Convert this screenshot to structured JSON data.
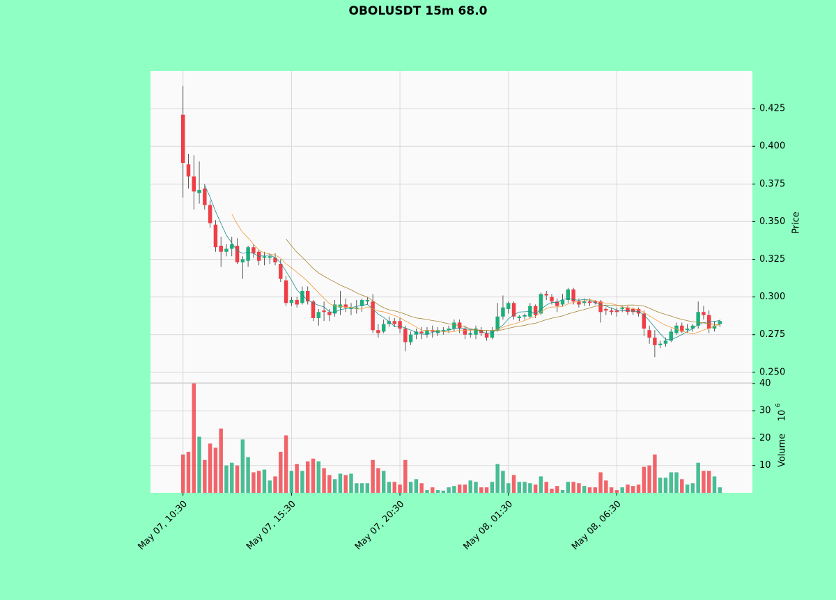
{
  "chart_data": {
    "type": "candlestick",
    "title": "OBOLUSDT 15m 68.0",
    "y_label": "Price",
    "y2_label": "Volume",
    "y2_unit_base": "10",
    "y2_unit_exponent": "6",
    "xlim": [
      -6,
      105
    ],
    "xticks": [
      {
        "value": 0,
        "label": "May 07, 10:30"
      },
      {
        "value": 20,
        "label": "May 07, 15:30"
      },
      {
        "value": 40,
        "label": "May 07, 20:30"
      },
      {
        "value": 60,
        "label": "May 08, 01:30"
      },
      {
        "value": 80,
        "label": "May 08, 06:30"
      }
    ],
    "ylim": [
      0.243,
      0.45
    ],
    "yticks": [
      {
        "value": 0.25,
        "label": "0.250"
      },
      {
        "value": 0.275,
        "label": "0.275"
      },
      {
        "value": 0.3,
        "label": "0.300"
      },
      {
        "value": 0.325,
        "label": "0.325"
      },
      {
        "value": 0.35,
        "label": "0.350"
      },
      {
        "value": 0.375,
        "label": "0.375"
      },
      {
        "value": 0.4,
        "label": "0.400"
      },
      {
        "value": 0.425,
        "label": "0.425"
      }
    ],
    "y2lim": [
      0,
      40.2
    ],
    "y2ticks": [
      10,
      20,
      30,
      40
    ],
    "grid": true,
    "up_color": "#1dae7a",
    "down_color": "#ef3e45",
    "moving_averages": [
      {
        "window": 5,
        "color": "#1f8a8a"
      },
      {
        "window": 10,
        "color": "#f59a3c"
      },
      {
        "window": 20,
        "color": "#a5822e"
      }
    ],
    "open": [
      0.421,
      0.388,
      0.38,
      0.369,
      0.372,
      0.361,
      0.348,
      0.334,
      0.33,
      0.332,
      0.334,
      0.323,
      0.324,
      0.333,
      0.33,
      0.326,
      0.326,
      0.326,
      0.322,
      0.311,
      0.296,
      0.298,
      0.296,
      0.304,
      0.297,
      0.286,
      0.291,
      0.29,
      0.289,
      0.293,
      0.295,
      0.292,
      0.292,
      0.294,
      0.297,
      0.297,
      0.278,
      0.277,
      0.282,
      0.284,
      0.284,
      0.279,
      0.27,
      0.275,
      0.277,
      0.275,
      0.278,
      0.276,
      0.277,
      0.278,
      0.279,
      0.283,
      0.279,
      0.275,
      0.275,
      0.278,
      0.276,
      0.273,
      0.278,
      0.287,
      0.292,
      0.296,
      0.286,
      0.287,
      0.287,
      0.294,
      0.289,
      0.302,
      0.3,
      0.297,
      0.295,
      0.298,
      0.305,
      0.297,
      0.296,
      0.297,
      0.297,
      0.297,
      0.292,
      0.291,
      0.291,
      0.292,
      0.293,
      0.292,
      0.292,
      0.289,
      0.278,
      0.273,
      0.268,
      0.269,
      0.271,
      0.276,
      0.281,
      0.278,
      0.279,
      0.281,
      0.29,
      0.288,
      0.279,
      0.282
    ],
    "high": [
      0.44,
      0.395,
      0.394,
      0.39,
      0.375,
      0.364,
      0.351,
      0.34,
      0.335,
      0.34,
      0.339,
      0.327,
      0.334,
      0.335,
      0.331,
      0.33,
      0.329,
      0.329,
      0.325,
      0.314,
      0.3,
      0.3,
      0.307,
      0.307,
      0.298,
      0.292,
      0.297,
      0.292,
      0.298,
      0.304,
      0.299,
      0.296,
      0.298,
      0.299,
      0.3,
      0.302,
      0.282,
      0.285,
      0.287,
      0.286,
      0.286,
      0.281,
      0.277,
      0.279,
      0.28,
      0.28,
      0.281,
      0.28,
      0.28,
      0.281,
      0.285,
      0.285,
      0.281,
      0.278,
      0.281,
      0.28,
      0.278,
      0.28,
      0.296,
      0.301,
      0.297,
      0.297,
      0.288,
      0.289,
      0.296,
      0.295,
      0.303,
      0.304,
      0.302,
      0.299,
      0.302,
      0.306,
      0.306,
      0.299,
      0.299,
      0.299,
      0.298,
      0.298,
      0.293,
      0.293,
      0.293,
      0.294,
      0.294,
      0.293,
      0.293,
      0.291,
      0.281,
      0.278,
      0.271,
      0.273,
      0.279,
      0.283,
      0.283,
      0.282,
      0.282,
      0.297,
      0.294,
      0.291,
      0.284,
      0.285
    ],
    "low": [
      0.366,
      0.372,
      0.358,
      0.362,
      0.358,
      0.346,
      0.33,
      0.32,
      0.327,
      0.327,
      0.322,
      0.312,
      0.32,
      0.326,
      0.321,
      0.321,
      0.322,
      0.321,
      0.31,
      0.294,
      0.294,
      0.293,
      0.295,
      0.295,
      0.284,
      0.281,
      0.284,
      0.284,
      0.287,
      0.288,
      0.29,
      0.288,
      0.289,
      0.29,
      0.295,
      0.276,
      0.273,
      0.276,
      0.28,
      0.28,
      0.276,
      0.264,
      0.268,
      0.272,
      0.272,
      0.273,
      0.273,
      0.274,
      0.275,
      0.276,
      0.277,
      0.276,
      0.272,
      0.273,
      0.272,
      0.274,
      0.271,
      0.272,
      0.277,
      0.285,
      0.289,
      0.285,
      0.284,
      0.285,
      0.286,
      0.286,
      0.288,
      0.298,
      0.295,
      0.29,
      0.294,
      0.296,
      0.295,
      0.293,
      0.294,
      0.294,
      0.295,
      0.283,
      0.288,
      0.288,
      0.287,
      0.29,
      0.288,
      0.288,
      0.287,
      0.274,
      0.269,
      0.26,
      0.266,
      0.267,
      0.27,
      0.275,
      0.276,
      0.276,
      0.277,
      0.279,
      0.285,
      0.276,
      0.277,
      0.28
    ],
    "close": [
      0.389,
      0.38,
      0.37,
      0.371,
      0.361,
      0.349,
      0.333,
      0.33,
      0.332,
      0.335,
      0.323,
      0.325,
      0.333,
      0.329,
      0.324,
      0.327,
      0.327,
      0.323,
      0.312,
      0.296,
      0.298,
      0.295,
      0.304,
      0.297,
      0.286,
      0.29,
      0.29,
      0.288,
      0.295,
      0.295,
      0.293,
      0.293,
      0.293,
      0.298,
      0.298,
      0.278,
      0.276,
      0.282,
      0.284,
      0.282,
      0.279,
      0.27,
      0.275,
      0.277,
      0.276,
      0.278,
      0.277,
      0.278,
      0.278,
      0.279,
      0.283,
      0.279,
      0.275,
      0.276,
      0.279,
      0.276,
      0.273,
      0.278,
      0.287,
      0.293,
      0.296,
      0.287,
      0.287,
      0.288,
      0.294,
      0.288,
      0.302,
      0.301,
      0.297,
      0.294,
      0.298,
      0.305,
      0.297,
      0.295,
      0.297,
      0.296,
      0.296,
      0.29,
      0.291,
      0.29,
      0.29,
      0.293,
      0.29,
      0.29,
      0.289,
      0.279,
      0.273,
      0.268,
      0.269,
      0.271,
      0.277,
      0.281,
      0.277,
      0.279,
      0.281,
      0.29,
      0.288,
      0.279,
      0.281,
      0.284
    ],
    "volume": [
      14,
      15,
      40,
      20.5,
      12,
      18,
      16.5,
      23.5,
      10,
      11,
      10,
      19.5,
      13,
      7.5,
      8,
      8.5,
      4.5,
      6,
      15,
      21,
      8,
      10.5,
      8,
      11.5,
      12.5,
      11.5,
      9,
      6.5,
      5,
      7,
      6.5,
      7,
      3.5,
      3.5,
      3.5,
      12,
      9,
      8,
      4,
      4,
      3,
      12,
      4,
      5,
      3.5,
      1,
      2,
      1,
      0.8,
      2,
      2.5,
      3,
      3,
      4.5,
      4,
      2,
      2,
      4,
      10.5,
      8,
      3.5,
      6.5,
      4,
      4,
      3.5,
      3,
      6,
      4,
      1.5,
      2.5,
      1,
      4,
      4,
      3.5,
      2.5,
      2,
      2,
      7.5,
      4.5,
      2,
      1,
      2,
      3,
      2.5,
      3,
      9.5,
      10,
      14,
      5.5,
      5.5,
      7.5,
      7.5,
      5,
      3,
      3.5,
      11,
      8,
      8,
      6,
      2
    ]
  }
}
